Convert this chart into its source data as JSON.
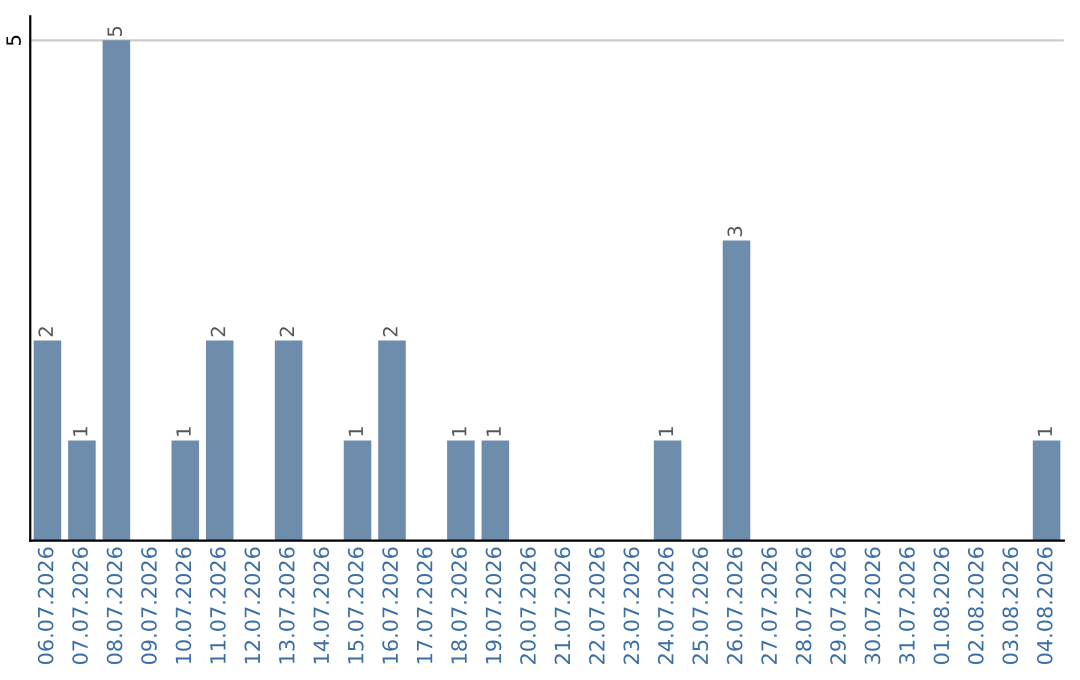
{
  "chart_data": {
    "type": "bar",
    "categories": [
      "06.07.2026",
      "07.07.2026",
      "08.07.2026",
      "09.07.2026",
      "10.07.2026",
      "11.07.2026",
      "12.07.2026",
      "13.07.2026",
      "14.07.2026",
      "15.07.2026",
      "16.07.2026",
      "17.07.2026",
      "18.07.2026",
      "19.07.2026",
      "20.07.2026",
      "21.07.2026",
      "22.07.2026",
      "23.07.2026",
      "24.07.2026",
      "25.07.2026",
      "26.07.2026",
      "27.07.2026",
      "28.07.2026",
      "29.07.2026",
      "30.07.2026",
      "31.07.2026",
      "01.08.2026",
      "02.08.2026",
      "03.08.2026",
      "04.08.2026"
    ],
    "values": [
      2,
      1,
      5,
      0,
      1,
      2,
      0,
      2,
      0,
      1,
      2,
      0,
      1,
      1,
      0,
      0,
      0,
      0,
      1,
      0,
      3,
      0,
      0,
      0,
      0,
      0,
      0,
      0,
      0,
      1
    ],
    "value_labels": [
      "2",
      "1",
      "5",
      null,
      "1",
      "2",
      null,
      "2",
      null,
      "1",
      "2",
      null,
      "1",
      "1",
      null,
      null,
      null,
      null,
      "1",
      null,
      "3",
      null,
      null,
      null,
      null,
      null,
      null,
      null,
      null,
      "1"
    ],
    "color": "#6e8cab",
    "ylim": [
      0,
      5.24
    ],
    "yticks": [
      5
    ],
    "grid": "y"
  }
}
